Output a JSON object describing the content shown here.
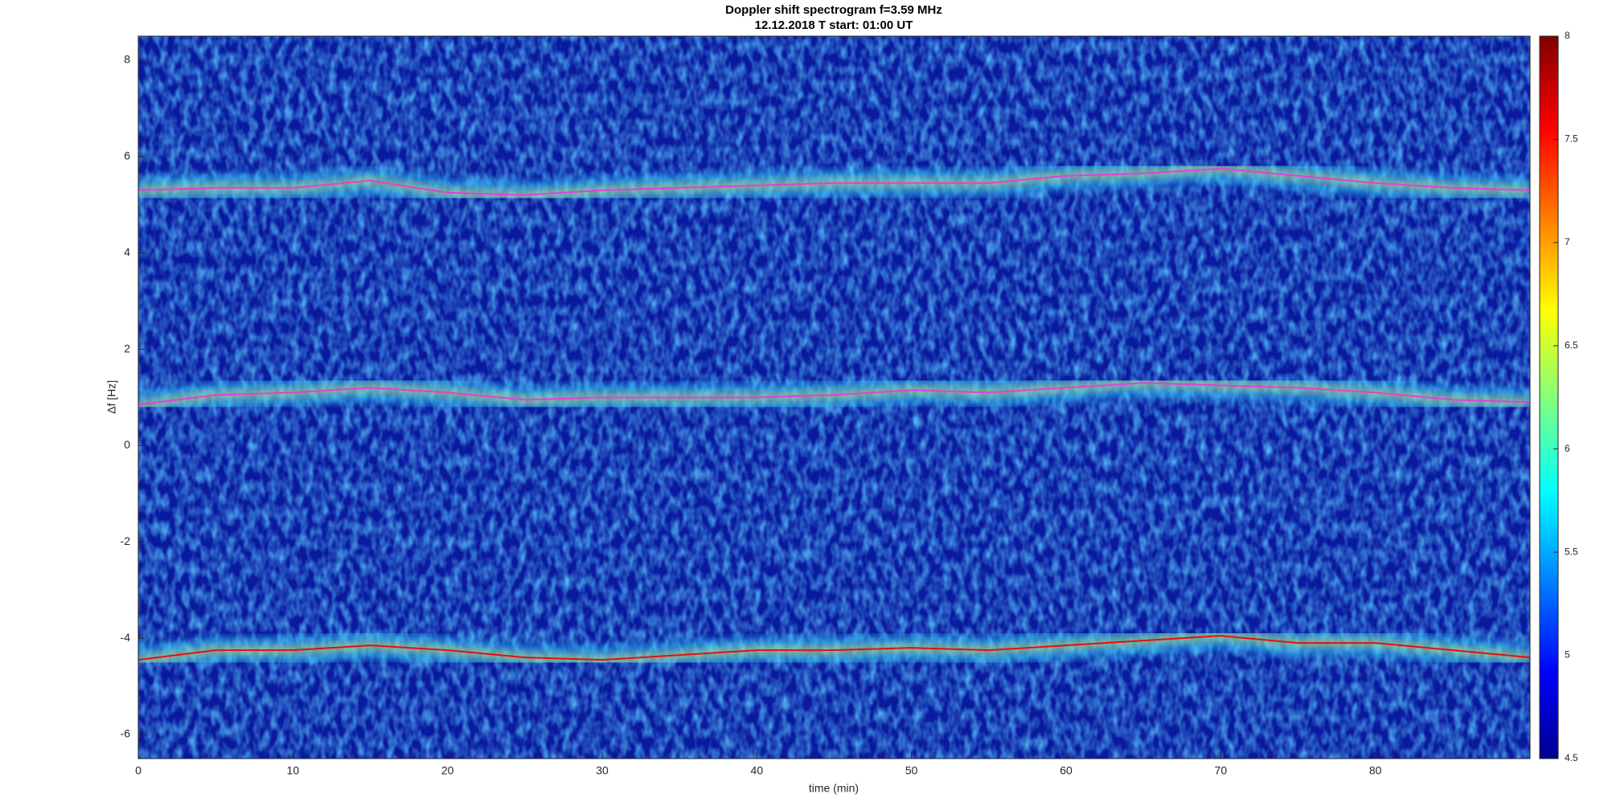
{
  "chart_data": {
    "type": "line",
    "title": "Doppler shift spectrogram f=3.59 MHz",
    "subtitle": "12.12.2018   T start: 01:00 UT",
    "xlabel": "time (min)",
    "ylabel": "Δf [Hz]",
    "x": [
      0,
      5,
      10,
      15,
      20,
      25,
      30,
      35,
      40,
      45,
      50,
      55,
      60,
      65,
      70,
      75,
      80,
      85,
      90
    ],
    "series": [
      {
        "color": "#e040e0",
        "values": [
          5.3,
          5.35,
          5.35,
          5.5,
          5.25,
          5.2,
          5.3,
          5.35,
          5.4,
          5.45,
          5.45,
          5.45,
          5.6,
          5.65,
          5.75,
          5.6,
          5.45,
          5.35,
          5.3
        ]
      },
      {
        "color": "#e040e0",
        "values": [
          0.85,
          1.05,
          1.1,
          1.2,
          1.1,
          0.95,
          1.0,
          1.0,
          1.0,
          1.05,
          1.15,
          1.1,
          1.2,
          1.3,
          1.25,
          1.2,
          1.1,
          0.95,
          0.9
        ]
      },
      {
        "color": "#e01010",
        "values": [
          -4.45,
          -4.25,
          -4.25,
          -4.15,
          -4.25,
          -4.4,
          -4.45,
          -4.35,
          -4.25,
          -4.25,
          -4.2,
          -4.25,
          -4.15,
          -4.05,
          -3.95,
          -4.1,
          -4.1,
          -4.25,
          -4.4
        ]
      }
    ],
    "xlim": [
      0,
      90
    ],
    "xticks": [
      0,
      10,
      20,
      30,
      40,
      50,
      60,
      70,
      80
    ],
    "ylim": [
      -6.5,
      8.5
    ],
    "yticks": [
      -6,
      -4,
      -2,
      0,
      2,
      4,
      6,
      8
    ],
    "colorbar": {
      "lim": [
        4.5,
        8
      ],
      "ticks": [
        4.5,
        5,
        5.5,
        6,
        6.5,
        7,
        7.5,
        8
      ]
    }
  }
}
